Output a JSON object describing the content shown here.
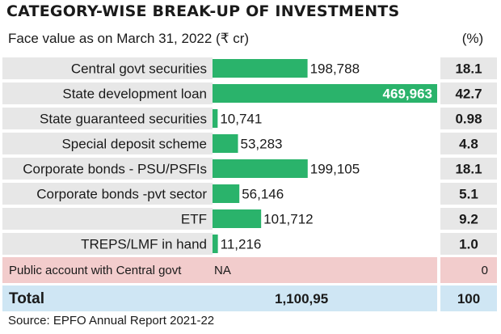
{
  "title": "CATEGORY-WISE BREAK-UP OF INVESTMENTS",
  "subtitle": "Face value as on March 31, 2022 (₹ cr)",
  "pct_header": "(%)",
  "source": "Source: EPFO Annual Report 2021-22",
  "colors": {
    "bar": "#2ab36b",
    "row_bg": "#e7e7e7",
    "napa_bg": "#f2cccc",
    "total_bg": "#cfe6f4",
    "highlight_text": "#ffffff"
  },
  "chart_data": {
    "type": "bar",
    "orientation": "horizontal",
    "categories": [
      "Central govt securities",
      "State development loan",
      "State guaranteed securities",
      "Special deposit scheme",
      "Corporate bonds - PSU/PSFIs",
      "Corporate bonds -pvt sector",
      "ETF",
      "TREPS/LMF in hand"
    ],
    "values": [
      198788,
      469963,
      10741,
      53283,
      199105,
      56146,
      101712,
      11216
    ],
    "value_labels": [
      "198,788",
      "469,963",
      "10,741",
      "53,283",
      "199,105",
      "56,146",
      "101,712",
      "11,216"
    ],
    "percent_labels": [
      "18.1",
      "42.7",
      "0.98",
      "4.8",
      "18.1",
      "5.1",
      "9.2",
      "1.0"
    ],
    "extra_rows": [
      {
        "label": "Public account with Central govt",
        "value_label": "NA",
        "percent_label": "0"
      }
    ],
    "total": {
      "label": "Total",
      "value_label": "1,100,95",
      "percent_label": "100"
    },
    "xlim": [
      0,
      469963
    ]
  }
}
